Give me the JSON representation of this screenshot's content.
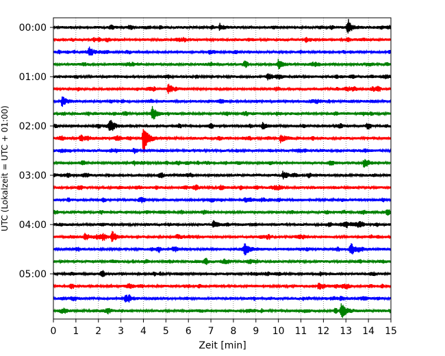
{
  "chart_data": {
    "type": "line",
    "title": "",
    "xlabel": "Zeit  [min]",
    "ylabel": "UTC (Lokalzeit = UTC + 01:00)",
    "xlim": [
      0,
      15
    ],
    "x_ticks": [
      "0",
      "1",
      "2",
      "3",
      "4",
      "5",
      "6",
      "7",
      "8",
      "9",
      "10",
      "11",
      "12",
      "13",
      "14",
      "15"
    ],
    "y_tick_labels": [
      "00:00",
      "01:00",
      "02:00",
      "03:00",
      "04:00",
      "05:00"
    ],
    "trace_interval_min": 15,
    "trace_count": 24,
    "trace_colors": [
      "#000000",
      "#ff0000",
      "#0000ff",
      "#008000"
    ],
    "grid": "vertical dotted lines at each minute",
    "events": [
      {
        "trace": 0,
        "minute": 13.1,
        "amplitude": 0.8
      },
      {
        "trace": 0,
        "minute": 7.4,
        "amplitude": 0.45
      },
      {
        "trace": 2,
        "minute": 1.6,
        "amplitude": 0.55
      },
      {
        "trace": 3,
        "minute": 10.0,
        "amplitude": 0.5
      },
      {
        "trace": 4,
        "minute": 9.5,
        "amplitude": 0.35
      },
      {
        "trace": 5,
        "minute": 5.1,
        "amplitude": 0.45
      },
      {
        "trace": 6,
        "minute": 0.4,
        "amplitude": 0.55
      },
      {
        "trace": 7,
        "minute": 4.4,
        "amplitude": 0.8
      },
      {
        "trace": 8,
        "minute": 2.5,
        "amplitude": 0.8
      },
      {
        "trace": 8,
        "minute": 9.3,
        "amplitude": 0.45
      },
      {
        "trace": 9,
        "minute": 4.0,
        "amplitude": 2.0
      },
      {
        "trace": 9,
        "minute": 1.2,
        "amplitude": 0.45
      },
      {
        "trace": 9,
        "minute": 10.1,
        "amplitude": 0.55
      },
      {
        "trace": 11,
        "minute": 13.8,
        "amplitude": 0.45
      },
      {
        "trace": 12,
        "minute": 10.2,
        "amplitude": 0.55
      },
      {
        "trace": 16,
        "minute": 7.1,
        "amplitude": 0.6
      },
      {
        "trace": 17,
        "minute": 2.6,
        "amplitude": 0.8
      },
      {
        "trace": 17,
        "minute": 1.4,
        "amplitude": 0.45
      },
      {
        "trace": 18,
        "minute": 8.5,
        "amplitude": 0.9
      },
      {
        "trace": 18,
        "minute": 13.2,
        "amplitude": 0.9
      },
      {
        "trace": 21,
        "minute": 11.8,
        "amplitude": 0.5
      },
      {
        "trace": 22,
        "minute": 3.2,
        "amplitude": 0.55
      },
      {
        "trace": 23,
        "minute": 12.8,
        "amplitude": 1.1
      }
    ]
  }
}
